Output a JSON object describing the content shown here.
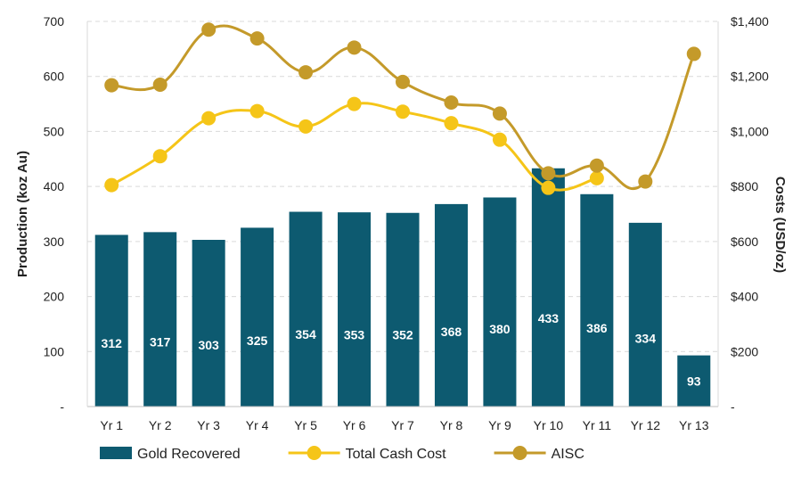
{
  "chart_data": {
    "type": "bar",
    "categories": [
      "Yr 1",
      "Yr 2",
      "Yr 3",
      "Yr 4",
      "Yr 5",
      "Yr 6",
      "Yr 7",
      "Yr 8",
      "Yr 9",
      "Yr 10",
      "Yr 11",
      "Yr 12",
      "Yr 13"
    ],
    "ylabel": "Production (koz Au)",
    "y2label": "Costs (USD/oz)",
    "ylim": [
      0,
      700
    ],
    "y2lim": [
      0,
      1400
    ],
    "yticks": [
      "-",
      "100",
      "200",
      "300",
      "400",
      "500",
      "600",
      "700"
    ],
    "y2ticks": [
      "-",
      "$200",
      "$400",
      "$600",
      "$800",
      "$1,000",
      "$1,200",
      "$1,400"
    ],
    "grid": "horizontal dashed",
    "legend_position": "bottom",
    "series": [
      {
        "name": "Gold Recovered",
        "type": "bar",
        "axis": "left",
        "color": "#0d5a70",
        "values": [
          312,
          317,
          303,
          325,
          354,
          353,
          352,
          368,
          380,
          433,
          386,
          334,
          93
        ],
        "labels": [
          "312",
          "317",
          "303",
          "325",
          "354",
          "353",
          "352",
          "368",
          "380",
          "433",
          "386",
          "334",
          "93"
        ]
      },
      {
        "name": "Total Cash Cost",
        "type": "line",
        "axis": "right",
        "color": "#f5c518",
        "values": [
          805,
          910,
          1048,
          1074,
          1018,
          1100,
          1072,
          1030,
          970,
          795,
          830,
          null,
          null
        ]
      },
      {
        "name": "AISC",
        "type": "line",
        "axis": "right",
        "color": "#c49a2a",
        "values": [
          1168,
          1170,
          1370,
          1338,
          1215,
          1305,
          1180,
          1105,
          1065,
          848,
          876,
          818,
          1282
        ]
      }
    ]
  }
}
